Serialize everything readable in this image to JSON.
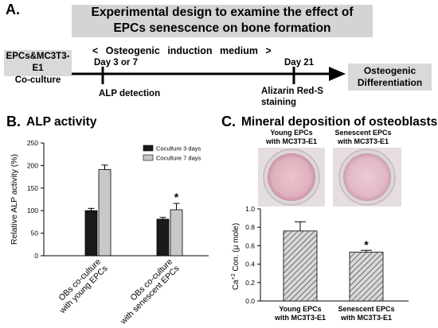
{
  "panelA": {
    "letter": "A.",
    "title_line1": "Experimental design to examine the effect of",
    "title_line2": "EPCs senescence on bone formation",
    "coculture_line1": "EPCs&MC3T3-E1",
    "coculture_line2": "Co-culture",
    "medium_label": "< Osteogenic induction medium >",
    "day_early": "Day 3 or 7",
    "day_late": "Day 21",
    "alp_detection": "ALP detection",
    "alizarin_line1": "Alizarin Red-S",
    "alizarin_line2": "staining",
    "outcome_line1": "Osteogenic",
    "outcome_line2": "Differentiation"
  },
  "panelB": {
    "letter": "B.",
    "title": "ALP activity"
  },
  "panelC": {
    "letter": "C.",
    "title": "Mineral deposition of osteoblasts",
    "well_labels": [
      {
        "line1": "Young EPCs",
        "line2": "with MC3T3-E1"
      },
      {
        "line1": "Senescent EPCs",
        "line2": "with MC3T3-E1"
      }
    ]
  },
  "chart_data": [
    {
      "type": "bar",
      "ylabel": "Relative ALP activity (%)",
      "ylim": [
        0,
        250
      ],
      "yticks": [
        "0",
        "50",
        "100",
        "150",
        "200",
        "250"
      ],
      "categories": [
        "OBs co-culture with young EPCs",
        "OBs co-culture with senescent EPCs"
      ],
      "category_lines": [
        [
          "OBs co-culture",
          "with young EPCs"
        ],
        [
          "OBs co-culture",
          "with senescent EPCs"
        ]
      ],
      "legend_position": "top-right",
      "series": [
        {
          "name": "Coculture 3 days",
          "color": "#1a1a1a",
          "values": [
            100,
            81
          ],
          "errors": [
            5,
            4
          ]
        },
        {
          "name": "Coculture 7 days",
          "color": "#c8c8c8",
          "values": [
            191,
            102
          ],
          "errors": [
            10,
            14
          ]
        }
      ],
      "significance": [
        {
          "category": 1,
          "series": 1,
          "marker": "*"
        }
      ]
    },
    {
      "type": "bar",
      "ylabel": "Ca+2 Con. (μ mole)",
      "ylabel_parts": [
        "Ca",
        "+2",
        " Con. (μ mole)"
      ],
      "ylim": [
        0,
        1.0
      ],
      "yticks": [
        "0.0",
        "0.2",
        "0.4",
        "0.6",
        "0.8",
        "1.0"
      ],
      "categories": [
        "Young EPCs with MC3T3-E1",
        "Senescent EPCs with MC3T3-E1"
      ],
      "category_lines": [
        [
          "Young EPCs",
          "with MC3T3-E1"
        ],
        [
          "Senescent EPCs",
          "with MC3T3-E1"
        ]
      ],
      "fill": "hatched",
      "values": [
        0.76,
        0.53
      ],
      "errors": [
        0.1,
        0.02
      ],
      "significance": [
        {
          "category": 1,
          "marker": "*"
        }
      ]
    }
  ]
}
